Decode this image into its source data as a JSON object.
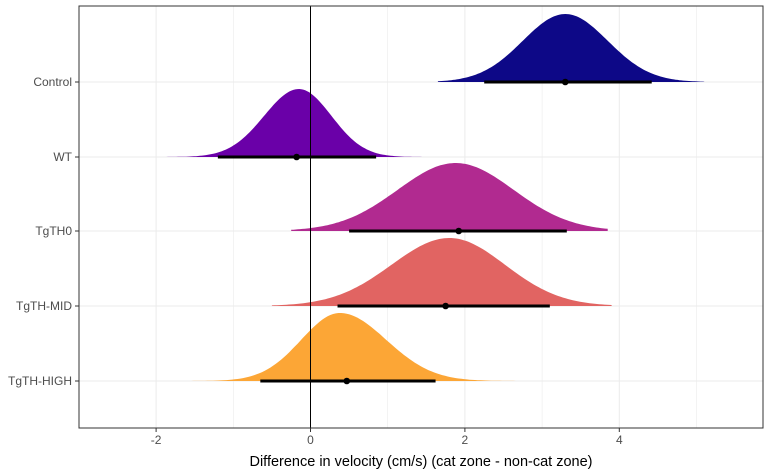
{
  "chart_data": {
    "type": "density-ridge",
    "title": "",
    "xlabel": "Difference in velocity (cm/s) (cat zone - non-cat zone)",
    "ylabel": "",
    "xlim": [
      -3,
      5.85
    ],
    "x_ticks": [
      -2,
      0,
      2,
      4
    ],
    "x_tick_labels": [
      "-2",
      "0",
      "2",
      "4"
    ],
    "zero_line": 0,
    "grid": true,
    "legend": "none",
    "categories": [
      "Control",
      "WT",
      "TgTH0",
      "TgTH-MID",
      "TgTH-HIGH"
    ],
    "series": [
      {
        "category": "Control",
        "color": "#0d0887",
        "peak": 3.3,
        "sd_left": 0.55,
        "sd_right": 0.55,
        "range": [
          1.65,
          5.1
        ],
        "point": 3.3,
        "interval": [
          2.25,
          4.42
        ]
      },
      {
        "category": "WT",
        "color": "#6a00a8",
        "peak": -0.15,
        "sd_left": 0.45,
        "sd_right": 0.42,
        "range": [
          -2.1,
          1.5
        ],
        "point": -0.18,
        "interval": [
          -1.2,
          0.85
        ]
      },
      {
        "category": "TgTH0",
        "color": "#b12a90",
        "peak": 1.88,
        "sd_left": 0.75,
        "sd_right": 0.75,
        "range": [
          -0.25,
          3.85
        ],
        "point": 1.92,
        "interval": [
          0.5,
          3.32
        ]
      },
      {
        "category": "TgTH-MID",
        "color": "#e16462",
        "peak": 1.8,
        "sd_left": 0.75,
        "sd_right": 0.72,
        "range": [
          -0.5,
          3.9
        ],
        "point": 1.75,
        "interval": [
          0.35,
          3.1
        ]
      },
      {
        "category": "TgTH-HIGH",
        "color": "#fca636",
        "peak": 0.38,
        "sd_left": 0.5,
        "sd_right": 0.6,
        "range": [
          -1.9,
          3.05
        ],
        "point": 0.47,
        "interval": [
          -0.65,
          1.62
        ]
      }
    ]
  }
}
